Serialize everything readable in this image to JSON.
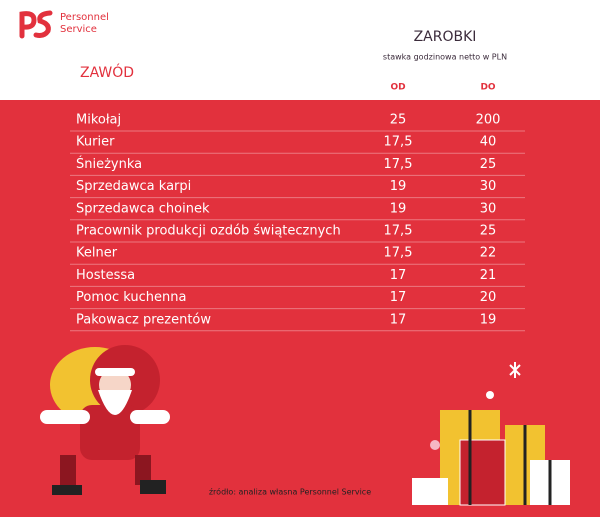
{
  "logo": {
    "line1": "Personnel",
    "line2": "Service"
  },
  "header": {
    "title": "ZAROBKI",
    "subtitle": "stawka godzinowa netto w PLN",
    "column_label": "ZAWÓD",
    "from": "OD",
    "to": "DO"
  },
  "table": {
    "rows": [
      [
        "Mikołaj",
        "25",
        "200"
      ],
      [
        "Kurier",
        "17,5",
        "40"
      ],
      [
        "Śnieżynka",
        "17,5",
        "25"
      ],
      [
        "Sprzedawca karpi",
        "19",
        "30"
      ],
      [
        "Sprzedawca choinek",
        "19",
        "30"
      ],
      [
        "Pracownik produkcji ozdób świątecznych",
        "17,5",
        "25"
      ],
      [
        "Kelner",
        "17,5",
        "22"
      ],
      [
        "Hostessa",
        "17",
        "21"
      ],
      [
        "Pomoc kuchenna",
        "17",
        "20"
      ],
      [
        "Pakowacz prezentów",
        "17",
        "19"
      ]
    ]
  },
  "source": "źródło: analiza własna Personnel Service"
}
